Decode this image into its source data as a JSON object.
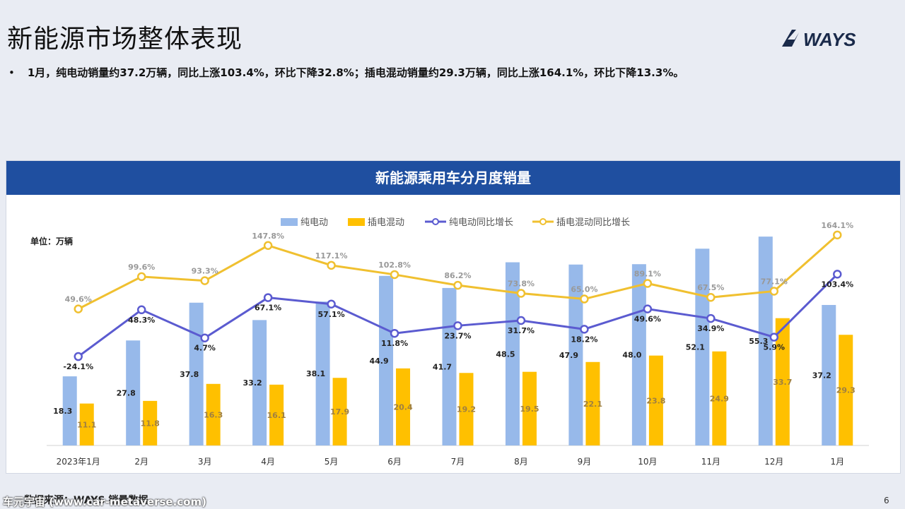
{
  "page": {
    "title": "新能源市场整体表现",
    "logo_text": "WAYS",
    "bullet": "1月，纯电动销量约37.2万辆，同比上涨103.4%，环比下降32.8%；插电混动销量约29.3万辆，同比上涨164.1%，环比下降13.3%。",
    "panel_title": "新能源乘用车分月度销量",
    "source": "数据来源：WAYS 销量数据",
    "watermark": "车元宇宙 (www.car-metaverse.com)",
    "page_number": "6"
  },
  "colors": {
    "header_bg": "#1f4fa0",
    "bev_bar": "#97b9ea",
    "phev_bar": "#ffc000",
    "bev_line": "#5b5bd0",
    "phev_line": "#f0c030"
  },
  "chart_data": {
    "type": "bar",
    "title": "新能源乘用车分月度销量",
    "unit_label": "单位：万辆",
    "legend_position": "top",
    "categories": [
      "2023年1月",
      "2月",
      "3月",
      "4月",
      "5月",
      "6月",
      "7月",
      "8月",
      "9月",
      "10月",
      "11月",
      "12月",
      "1月"
    ],
    "series": [
      {
        "name": "纯电动",
        "kind": "bar",
        "values": [
          18.3,
          27.8,
          37.8,
          33.2,
          38.1,
          44.9,
          41.7,
          48.5,
          47.9,
          48.0,
          52.1,
          55.3,
          37.2
        ],
        "labels": [
          "18.3",
          "27.8",
          "37.8",
          "33.2",
          "38.1",
          "44.9",
          "41.7",
          "48.5",
          "47.9",
          "48.0",
          "52.1",
          "55.3",
          "37.2"
        ]
      },
      {
        "name": "插电混动",
        "kind": "bar",
        "values": [
          11.1,
          11.8,
          16.3,
          16.1,
          17.9,
          20.4,
          19.2,
          19.5,
          22.1,
          23.8,
          24.9,
          33.7,
          29.3
        ],
        "labels": [
          "11.1",
          "11.8",
          "16.3",
          "16.1",
          "17.9",
          "20.4",
          "19.2",
          "19.5",
          "22.1",
          "23.8",
          "24.9",
          "33.7",
          "29.3"
        ]
      },
      {
        "name": "纯电动同比增长",
        "kind": "line",
        "values": [
          -24.1,
          48.3,
          4.7,
          67.1,
          57.1,
          11.8,
          23.7,
          31.7,
          18.2,
          49.6,
          34.9,
          5.9,
          103.4
        ],
        "labels": [
          "-24.1%",
          "48.3%",
          "4.7%",
          "67.1%",
          "57.1%",
          "11.8%",
          "23.7%",
          "31.7%",
          "18.2%",
          "49.6%",
          "34.9%",
          "5.9%",
          "103.4%"
        ]
      },
      {
        "name": "插电混动同比增长",
        "kind": "line",
        "values": [
          49.6,
          99.6,
          93.3,
          147.8,
          117.1,
          102.8,
          86.2,
          73.8,
          65.0,
          89.1,
          67.5,
          77.1,
          164.1
        ],
        "labels": [
          "49.6%",
          "99.6%",
          "93.3%",
          "147.8%",
          "117.1%",
          "102.8%",
          "86.2%",
          "73.8%",
          "65.0%",
          "89.1%",
          "67.5%",
          "77.1%",
          "164.1%"
        ]
      }
    ],
    "bar_ylim": [
      0,
      60
    ],
    "line_ylim": [
      -50,
      400
    ],
    "grid": false
  }
}
